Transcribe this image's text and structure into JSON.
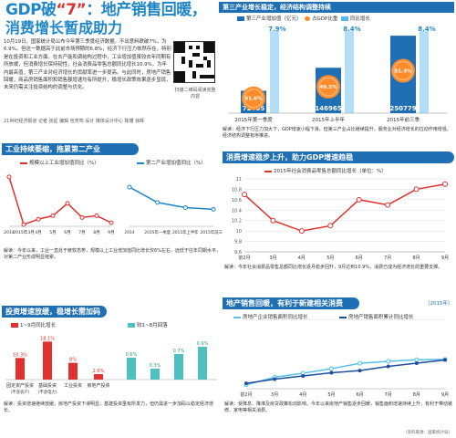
{
  "header": {
    "title_prefix": "GDP破",
    "title_quote": "“7”",
    "title_suffix": "：地产销售回暖，",
    "subtitle": "消费增长暂成助力",
    "intro": "10月19日，国家统计局公布今年第三季度经济数据。不出意料跌破7%，为6.9%。但这一数据高于此前市场预期的6.8%，经济下行压力依然存在，特别是在投资和工业方面。在去产能和调结构过程中，工业增加值虽较去年同期有所放缓，但消费增长保持韧性，社会消费品零售总额同比增长10.9%，为年内最高值，第三产业对经济增长的贡献率进一步提高。与此同时，房地产销售回暖，商品房销售面积和销售额增速均有所提升，稳增长政策效果逐步显现，未来仍需关注投资结构的调整与优化。",
    "credit": "21世纪经济报道 记者 张星 编辑 包芳鸣 设计 媒体设计中心 陈珊 徐辉",
    "qr_caption": "扫描二维码阅读完整内容"
  },
  "sections": {
    "structure": {
      "title": "第三产业增长稳定，经济结构调整持续"
    },
    "industry": {
      "title": "工业持续萎缩，拖累第二产业"
    },
    "consumption": {
      "title": "消费增速稳步上升，助力GDP增速趋稳",
      "legend": "2015年社会消费品零售总额同比增长（单位：%）"
    },
    "investment": {
      "title": "投资增速放缓，稳增长需加码"
    },
    "property": {
      "title": "地产销售回暖，有利于新建相关消费",
      "year": "（2015年）"
    }
  },
  "notes": {
    "structure": "解读：经济下行压力加大下，GDP增速小幅下滑。但第三产业占比继续提升，服务业对经济增长的拉动作用增强，经济结构调整有序推进。",
    "industry": "解读：今年以来，工业一直处于疲软态势，规模以上工业增加值同比增长仅6%左右，远低于往年同期水平，对第二产业形成明显拖累。",
    "consumption": "解读：今年社会消费品零售总额同比增长逐月稳步回升，9月达到10.9%，消费已成为经济增长的重要支撑。",
    "investment": "解读：投资增速继续放缓，房地产投资下滑明显，基建投资虽有所发力，但仍需进一步加码以稳定经济增长。",
    "property": "解读：受降息、降准及房贷政策松动影响，今年以来房地产销售逐步回暖，销售面积增速持续上升，有利于带动装修、家电等相关消费。"
  },
  "chart_data": [
    {
      "type": "bar",
      "title": "第三产业结构",
      "legend": [
        "第三产业增加值（亿元）",
        "占GDP比重",
        "同比增长"
      ],
      "categories": [
        "2015年第一季度",
        "2015年上半年",
        "2015年前三季"
      ],
      "values": [
        72605,
        146965,
        250779
      ],
      "share": [
        "51.6%",
        "49.5%",
        "51.4%"
      ],
      "growth": [
        "7.9%",
        "8.4%",
        "8.4%"
      ],
      "colors": [
        "#1f6fb4",
        "#ff8c2a",
        "#55b8ee"
      ]
    },
    {
      "type": "line",
      "series": [
        {
          "name": "规模以上工业增加值同比（%）",
          "categories": [
            "2014",
            "2015年3月",
            "4月",
            "5月",
            "6月",
            "7月",
            "8月",
            "9月"
          ],
          "values": [
            8.3,
            5.6,
            5.9,
            6.1,
            6.8,
            6.0,
            6.1,
            5.7
          ]
        }
      ],
      "ylim": [
        5.5,
        8.5
      ],
      "color": "#e0312f"
    },
    {
      "type": "line",
      "series": [
        {
          "name": "第二产业增加值同比（%）",
          "categories": [
            "2014",
            "2015年一季度",
            "2015年上半年",
            "2015年前三季"
          ],
          "values": [
            7.3,
            6.4,
            6.1,
            6.0
          ]
        }
      ],
      "ylim": [
        5,
        8
      ],
      "color": "#1f86c7"
    },
    {
      "type": "line",
      "series": [
        {
          "name": "2015年社会消费品零售总额同比增长",
          "categories": [
            "前2月",
            "3月",
            "4月",
            "5月",
            "6月",
            "7月",
            "8月",
            "9月"
          ],
          "values": [
            10.7,
            10.2,
            10.0,
            10.1,
            10.6,
            10.5,
            10.8,
            10.9
          ]
        }
      ],
      "ylim": [
        9.6,
        11
      ],
      "yticks": [
        "9.6",
        "9.8",
        "10",
        "10.2",
        "10.4",
        "10.6",
        "10.8",
        "11"
      ],
      "color": "#e0312f"
    },
    {
      "type": "bar",
      "legend": [
        "1~9月同比增长",
        "较1~8月回落"
      ],
      "categories": [
        "固定资产投资（不含农户）",
        "基础投资（不含电力）",
        "工业投资",
        "房地产投资"
      ],
      "values": [
        10.3,
        18.1,
        8.0,
        2.6
      ],
      "labels": [
        "10.3%",
        "18.1%",
        "8%",
        "2.6%"
      ],
      "decline": [
        0.6,
        0.3,
        0.7,
        0.9
      ],
      "decline_labels": [
        "0.6%",
        "0.3%",
        "0.7%",
        "0.9%"
      ],
      "colors": [
        "#e0312f",
        "#4fc0c0"
      ]
    },
    {
      "type": "line",
      "categories": [
        "前2月",
        "3月",
        "4月",
        "5月",
        "6月",
        "7月",
        "8月",
        "9月"
      ],
      "series": [
        {
          "name": "房地产企业销售面积同比增长",
          "values": [
            -16.3,
            -9.2,
            -5.4,
            -1.2,
            3.9,
            5.7,
            7.2,
            7.5
          ]
        },
        {
          "name": "房地产销售面积累计同比增长",
          "values": [
            -15,
            -11,
            -8,
            -5,
            -3,
            1,
            4,
            7
          ]
        }
      ],
      "ylim": [
        -20,
        40
      ],
      "yticks": [
        "-20%",
        "-10%",
        "0%",
        "10%",
        "20%",
        "30%",
        "40%"
      ],
      "colors": [
        "#55c0ea",
        "#1f4e9c"
      ]
    }
  ],
  "footer": "（资料来源：国家统计局）"
}
